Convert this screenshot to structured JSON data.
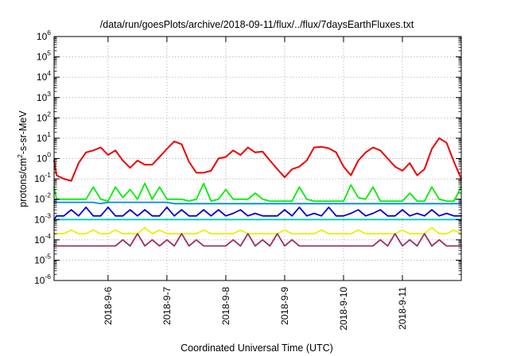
{
  "chart_data": {
    "type": "line",
    "title": "/data/run/goesPlots/archive/2018-09-11/flux/../flux/7daysEarthFluxes.txt",
    "xlabel": "Coordinated Universal Time (UTC)",
    "ylabel": {
      "base": "protons/cm",
      "sup": "2",
      "tail": "-s-sr-MeV"
    },
    "y_scale": "log",
    "ylim": [
      1e-06,
      1000000.0
    ],
    "y_ticks": [
      {
        "value": 1000000.0,
        "base": "10",
        "exp": "6"
      },
      {
        "value": 100000.0,
        "base": "10",
        "exp": "5"
      },
      {
        "value": 10000.0,
        "base": "10",
        "exp": "4"
      },
      {
        "value": 1000.0,
        "base": "10",
        "exp": "3"
      },
      {
        "value": 100.0,
        "base": "10",
        "exp": "2"
      },
      {
        "value": 10.0,
        "base": "10",
        "exp": "1"
      },
      {
        "value": 1.0,
        "base": "10",
        "exp": "0"
      },
      {
        "value": 0.1,
        "base": "10",
        "exp": "-1"
      },
      {
        "value": 0.01,
        "base": "10",
        "exp": "-2"
      },
      {
        "value": 0.001,
        "base": "10",
        "exp": "-3"
      },
      {
        "value": 0.0001,
        "base": "10",
        "exp": "-4"
      },
      {
        "value": 1e-05,
        "base": "10",
        "exp": "-5"
      },
      {
        "value": 1e-06,
        "base": "10",
        "exp": "-6"
      }
    ],
    "xlim": [
      "2018-09-05 02:00",
      "2018-09-12 00:00"
    ],
    "x_ticks": [
      "2018-9-6",
      "2018-9-7",
      "2018-9-8",
      "2018-9-9",
      "2018-9-10",
      "2018-9-11"
    ],
    "grid": true,
    "legend": "none",
    "x": [
      "2018-09-05 02:00",
      "2018-09-05 03:00",
      "2018-09-05 06:00",
      "2018-09-05 09:00",
      "2018-09-05 12:00",
      "2018-09-05 15:00",
      "2018-09-05 18:00",
      "2018-09-05 21:00",
      "2018-09-06 00:00",
      "2018-09-06 03:00",
      "2018-09-06 06:00",
      "2018-09-06 09:00",
      "2018-09-06 12:00",
      "2018-09-06 15:00",
      "2018-09-06 18:00",
      "2018-09-06 21:00",
      "2018-09-07 00:00",
      "2018-09-07 03:00",
      "2018-09-07 06:00",
      "2018-09-07 09:00",
      "2018-09-07 12:00",
      "2018-09-07 15:00",
      "2018-09-07 18:00",
      "2018-09-07 21:00",
      "2018-09-08 00:00",
      "2018-09-08 03:00",
      "2018-09-08 06:00",
      "2018-09-08 09:00",
      "2018-09-08 12:00",
      "2018-09-08 15:00",
      "2018-09-08 18:00",
      "2018-09-08 21:00",
      "2018-09-09 00:00",
      "2018-09-09 03:00",
      "2018-09-09 06:00",
      "2018-09-09 09:00",
      "2018-09-09 12:00",
      "2018-09-09 15:00",
      "2018-09-09 18:00",
      "2018-09-09 21:00",
      "2018-09-10 00:00",
      "2018-09-10 03:00",
      "2018-09-10 06:00",
      "2018-09-10 09:00",
      "2018-09-10 12:00",
      "2018-09-10 15:00",
      "2018-09-10 18:00",
      "2018-09-10 21:00",
      "2018-09-11 00:00",
      "2018-09-11 03:00",
      "2018-09-11 06:00",
      "2018-09-11 09:00",
      "2018-09-11 12:00",
      "2018-09-11 15:00",
      "2018-09-11 18:00",
      "2018-09-11 21:00",
      "2018-09-12 00:00"
    ],
    "series": [
      {
        "color": "#ee0000",
        "values": [
          0.8,
          0.15,
          0.1,
          0.08,
          0.6,
          2,
          2.5,
          3.5,
          1.5,
          2.5,
          0.8,
          0.35,
          0.8,
          0.5,
          0.5,
          1.2,
          3,
          7,
          5,
          0.7,
          0.2,
          0.2,
          0.25,
          1,
          1.2,
          2.5,
          1.5,
          3.5,
          2,
          2.2,
          0.8,
          0.3,
          0.12,
          0.3,
          0.4,
          0.8,
          3.5,
          3.8,
          3.2,
          2,
          0.4,
          0.15,
          0.8,
          2,
          3.5,
          2.5,
          1,
          0.4,
          0.25,
          0.6,
          0.15,
          0.3,
          3,
          10,
          6,
          0.7,
          0.1
        ]
      },
      {
        "color": "#00ee00",
        "values": [
          0.04,
          0.01,
          0.01,
          0.01,
          0.01,
          0.01,
          0.04,
          0.01,
          0.008,
          0.04,
          0.012,
          0.03,
          0.01,
          0.06,
          0.01,
          0.04,
          0.01,
          0.01,
          0.01,
          0.008,
          0.01,
          0.06,
          0.008,
          0.01,
          0.03,
          0.01,
          0.01,
          0.01,
          0.02,
          0.01,
          0.008,
          0.008,
          0.008,
          0.008,
          0.04,
          0.01,
          0.008,
          0.008,
          0.008,
          0.008,
          0.008,
          0.05,
          0.012,
          0.01,
          0.04,
          0.008,
          0.008,
          0.008,
          0.008,
          0.02,
          0.008,
          0.008,
          0.04,
          0.01,
          0.008,
          0.008,
          0.04
        ]
      },
      {
        "color": "#0088ee",
        "values": [
          0.007,
          0.007,
          0.007,
          0.007,
          0.007,
          0.007,
          0.007,
          0.006,
          0.007,
          0.007,
          0.007,
          0.007,
          0.007,
          0.007,
          0.007,
          0.007,
          0.007,
          0.006,
          0.006,
          0.006,
          0.006,
          0.006,
          0.006,
          0.006,
          0.006,
          0.006,
          0.006,
          0.006,
          0.006,
          0.006,
          0.006,
          0.006,
          0.006,
          0.006,
          0.006,
          0.006,
          0.006,
          0.006,
          0.006,
          0.006,
          0.006,
          0.006,
          0.006,
          0.006,
          0.006,
          0.006,
          0.006,
          0.006,
          0.006,
          0.006,
          0.006,
          0.006,
          0.006,
          0.006,
          0.006,
          0.006,
          0.006
        ]
      },
      {
        "color": "#0000cc",
        "values": [
          0.001,
          0.0015,
          0.0015,
          0.003,
          0.0015,
          0.004,
          0.0015,
          0.0015,
          0.004,
          0.0015,
          0.0015,
          0.003,
          0.0015,
          0.003,
          0.0015,
          0.0015,
          0.004,
          0.0015,
          0.003,
          0.0015,
          0.0015,
          0.003,
          0.0015,
          0.003,
          0.0015,
          0.002,
          0.003,
          0.0015,
          0.002,
          0.0015,
          0.0015,
          0.0015,
          0.003,
          0.0015,
          0.004,
          0.0015,
          0.002,
          0.0015,
          0.004,
          0.0015,
          0.0015,
          0.002,
          0.003,
          0.0015,
          0.002,
          0.003,
          0.0015,
          0.0015,
          0.003,
          0.0015,
          0.002,
          0.0015,
          0.003,
          0.0015,
          0.002,
          0.0015,
          0.0015
        ]
      },
      {
        "color": "#00ccbb",
        "values": [
          0.001,
          0.001,
          0.001,
          0.001,
          0.001,
          0.001,
          0.001,
          0.001,
          0.001,
          0.001,
          0.001,
          0.001,
          0.001,
          0.001,
          0.001,
          0.001,
          0.001,
          0.001,
          0.001,
          0.001,
          0.001,
          0.001,
          0.001,
          0.001,
          0.001,
          0.001,
          0.001,
          0.001,
          0.001,
          0.001,
          0.001,
          0.001,
          0.001,
          0.001,
          0.001,
          0.001,
          0.001,
          0.001,
          0.001,
          0.001,
          0.001,
          0.001,
          0.001,
          0.001,
          0.001,
          0.001,
          0.001,
          0.001,
          0.001,
          0.001,
          0.001,
          0.001,
          0.001,
          0.001,
          0.001,
          0.001,
          0.001
        ]
      },
      {
        "color": "#eeee00",
        "values": [
          0.0002,
          0.0002,
          0.0002,
          0.0003,
          0.0002,
          0.0002,
          0.0003,
          0.0002,
          0.0002,
          0.0003,
          0.0002,
          0.0002,
          0.0002,
          0.0004,
          0.0002,
          0.0003,
          0.0002,
          0.0002,
          0.0002,
          0.0002,
          0.0002,
          0.0003,
          0.0002,
          0.0002,
          0.0002,
          0.0002,
          0.0003,
          0.0002,
          0.0002,
          0.0002,
          0.0002,
          0.0002,
          0.0003,
          0.0002,
          0.0002,
          0.0002,
          0.0002,
          0.0003,
          0.0002,
          0.0002,
          0.0002,
          0.0002,
          0.0003,
          0.0002,
          0.0002,
          0.0002,
          0.0002,
          0.0002,
          0.0003,
          0.0002,
          0.0002,
          0.0002,
          0.0004,
          0.0002,
          0.0002,
          0.0003,
          0.0002
        ]
      },
      {
        "color": "#993366",
        "values": [
          5e-05,
          5e-05,
          5e-05,
          5e-05,
          5e-05,
          5e-05,
          5e-05,
          5e-05,
          5e-05,
          5e-05,
          0.0001,
          5e-05,
          0.0002,
          5e-05,
          0.0001,
          5e-05,
          0.0001,
          5e-05,
          0.0002,
          5e-05,
          0.0001,
          5e-05,
          5e-05,
          5e-05,
          5e-05,
          0.0001,
          5e-05,
          0.0002,
          5e-05,
          0.0001,
          5e-05,
          0.0002,
          5e-05,
          0.0001,
          5e-05,
          5e-05,
          5e-05,
          5e-05,
          5e-05,
          5e-05,
          5e-05,
          5e-05,
          5e-05,
          5e-05,
          5e-05,
          0.0001,
          5e-05,
          0.0002,
          5e-05,
          0.0001,
          5e-05,
          0.0002,
          5e-05,
          0.0001,
          5e-05,
          5e-05,
          5e-05
        ]
      }
    ]
  }
}
